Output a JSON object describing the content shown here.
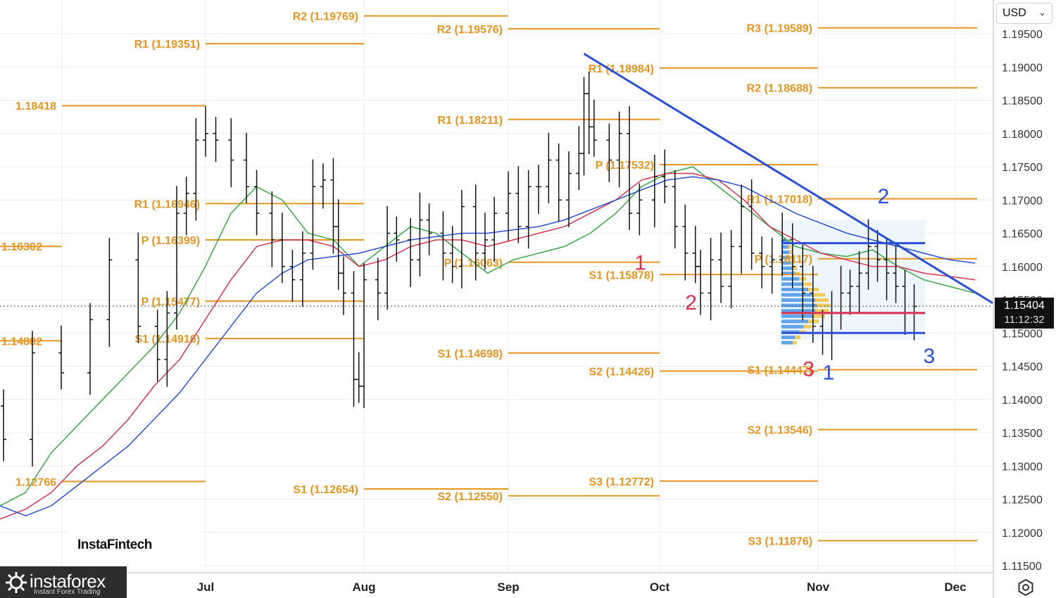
{
  "currency": "USD",
  "current_price": "1.15404",
  "countdown": "11:12:32",
  "watermark": "InstaFintech",
  "brand": {
    "name": "instaforex",
    "tagline": "Instant Forex Trading"
  },
  "colors": {
    "pivot": "#e69520",
    "trendline": "#2a4fd6",
    "ma_fast": "#3aa84a",
    "ma_mid": "#d8324f",
    "ma_slow": "#2a4fd6",
    "wave_red": "#d8324f",
    "wave_blue": "#2a4fd6"
  },
  "chart_data": {
    "type": "ohlc",
    "symbol_quote": "USD",
    "y_ticks": [
      "1.19500",
      "1.19000",
      "1.18500",
      "1.18000",
      "1.17500",
      "1.17000",
      "1.16500",
      "1.16000",
      "1.15500",
      "1.15000",
      "1.14500",
      "1.14000",
      "1.13500",
      "1.13000",
      "1.12500",
      "1.12000",
      "1.11500"
    ],
    "x_ticks": [
      "Jul",
      "Aug",
      "Sep",
      "Oct",
      "Nov",
      "Dec"
    ],
    "close_path": [
      [
        "Jun 01",
        1.1245
      ],
      [
        "Jun 04",
        1.133
      ],
      [
        "Jun 07",
        1.139
      ],
      [
        "Jun 10",
        1.134
      ],
      [
        "Jun 13",
        1.147
      ],
      [
        "Jun 16",
        1.144
      ],
      [
        "Jun 19",
        1.152
      ],
      [
        "Jun 21",
        1.161
      ],
      [
        "Jun 24",
        1.151
      ],
      [
        "Jun 26",
        1.146
      ],
      [
        "Jun 27",
        1.153
      ],
      [
        "Jun 28",
        1.168
      ],
      [
        "Jun 29",
        1.171
      ],
      [
        "Jun 30",
        1.179
      ],
      [
        "Jul 01",
        1.18
      ],
      [
        "Jul 03",
        1.179
      ],
      [
        "Jul 06",
        1.176
      ],
      [
        "Jul 09",
        1.172
      ],
      [
        "Jul 11",
        1.168
      ],
      [
        "Jul 14",
        1.164
      ],
      [
        "Jul 16",
        1.16
      ],
      [
        "Jul 18",
        1.158
      ],
      [
        "Jul 20",
        1.162
      ],
      [
        "Jul 22",
        1.172
      ],
      [
        "Jul 24",
        1.173
      ],
      [
        "Jul 26",
        1.166
      ],
      [
        "Jul 27",
        1.159
      ],
      [
        "Jul 28",
        1.156
      ],
      [
        "Jul 30",
        1.143
      ],
      [
        "Jul 31",
        1.142
      ],
      [
        "Aug 01",
        1.158
      ],
      [
        "Aug 04",
        1.156
      ],
      [
        "Aug 06",
        1.165
      ],
      [
        "Aug 08",
        1.164
      ],
      [
        "Aug 11",
        1.161
      ],
      [
        "Aug 13",
        1.167
      ],
      [
        "Aug 15",
        1.165
      ],
      [
        "Aug 18",
        1.162
      ],
      [
        "Aug 20",
        1.16
      ],
      [
        "Aug 22",
        1.169
      ],
      [
        "Aug 25",
        1.162
      ],
      [
        "Aug 27",
        1.164
      ],
      [
        "Aug 29",
        1.168
      ],
      [
        "Sep 01",
        1.171
      ],
      [
        "Sep 03",
        1.166
      ],
      [
        "Sep 05",
        1.172
      ],
      [
        "Sep 07",
        1.172
      ],
      [
        "Sep 09",
        1.176
      ],
      [
        "Sep 11",
        1.17
      ],
      [
        "Sep 13",
        1.174
      ],
      [
        "Sep 15",
        1.177
      ],
      [
        "Sep 16",
        1.186
      ],
      [
        "Sep 17",
        1.181
      ],
      [
        "Sep 18",
        1.179
      ],
      [
        "Sep 21",
        1.176
      ],
      [
        "Sep 23",
        1.18
      ],
      [
        "Sep 25",
        1.168
      ],
      [
        "Sep 27",
        1.17
      ],
      [
        "Sep 30",
        1.1735
      ],
      [
        "Oct 02",
        1.172
      ],
      [
        "Oct 04",
        1.166
      ],
      [
        "Oct 06",
        1.162
      ],
      [
        "Oct 08",
        1.16
      ],
      [
        "Oct 09",
        1.156
      ],
      [
        "Oct 11",
        1.161
      ],
      [
        "Oct 13",
        1.157
      ],
      [
        "Oct 15",
        1.163
      ],
      [
        "Oct 17",
        1.169
      ],
      [
        "Oct 19",
        1.162
      ],
      [
        "Oct 21",
        1.16
      ],
      [
        "Oct 23",
        1.161
      ],
      [
        "Oct 25",
        1.164
      ],
      [
        "Oct 27",
        1.16
      ],
      [
        "Oct 29",
        1.156
      ],
      [
        "Oct 31",
        1.151
      ],
      [
        "Nov 02",
        1.15
      ],
      [
        "Nov 04",
        1.153
      ],
      [
        "Nov 06",
        1.156
      ],
      [
        "Nov 08",
        1.157
      ],
      [
        "Nov 10",
        1.159
      ],
      [
        "Nov 12",
        1.163
      ],
      [
        "Nov 14",
        1.161
      ],
      [
        "Nov 16",
        1.159
      ],
      [
        "Nov 18",
        1.157
      ],
      [
        "Nov 20",
        1.153
      ],
      [
        "Nov 22",
        1.154
      ]
    ],
    "moving_averages": [
      {
        "color": "green",
        "values": [
          1.124,
          1.126,
          1.132,
          1.136,
          1.14,
          1.144,
          1.148,
          1.153,
          1.16,
          1.168,
          1.172,
          1.17,
          1.165,
          1.164,
          1.16,
          1.163,
          1.166,
          1.165,
          1.162,
          1.159,
          1.161,
          1.162,
          1.163,
          1.165,
          1.168,
          1.172,
          1.174,
          1.175,
          1.172,
          1.169,
          1.166,
          1.163,
          1.162,
          1.1615,
          1.1625,
          1.16,
          1.158,
          1.157,
          1.156
        ]
      },
      {
        "color": "red",
        "values": [
          1.122,
          1.1235,
          1.126,
          1.13,
          1.133,
          1.137,
          1.142,
          1.146,
          1.152,
          1.158,
          1.163,
          1.164,
          1.164,
          1.163,
          1.16,
          1.161,
          1.163,
          1.164,
          1.164,
          1.163,
          1.164,
          1.165,
          1.166,
          1.168,
          1.17,
          1.173,
          1.174,
          1.174,
          1.173,
          1.17,
          1.166,
          1.164,
          1.162,
          1.161,
          1.16,
          1.16,
          1.159,
          1.1585,
          1.158
        ]
      },
      {
        "color": "blue",
        "values": [
          1.124,
          1.1225,
          1.124,
          1.127,
          1.13,
          1.133,
          1.137,
          1.141,
          1.146,
          1.151,
          1.156,
          1.159,
          1.161,
          1.1615,
          1.162,
          1.163,
          1.164,
          1.1645,
          1.165,
          1.165,
          1.1655,
          1.166,
          1.167,
          1.1685,
          1.17,
          1.1715,
          1.173,
          1.1735,
          1.173,
          1.172,
          1.17,
          1.168,
          1.1665,
          1.165,
          1.164,
          1.163,
          1.162,
          1.161,
          1.1605
        ]
      }
    ],
    "pivot_levels": [
      {
        "label": "1.18418",
        "value": 1.18418,
        "period": "Jun"
      },
      {
        "label": "1.16302",
        "value": 1.16302,
        "period": "Jun"
      },
      {
        "label": "1.14882",
        "value": 1.14882,
        "period": "Jun"
      },
      {
        "label": "1.12766",
        "value": 1.12766,
        "period": "Jun"
      },
      {
        "label": "R2 (1.19769)",
        "value": 1.19769,
        "period": "Jul"
      },
      {
        "label": "R1 (1.19351)",
        "value": 1.19351,
        "period": "Jul"
      },
      {
        "label": "R1 (1.16946)",
        "value": 1.16946,
        "period": "Jul"
      },
      {
        "label": "P (1.16399)",
        "value": 1.16399,
        "period": "Jul"
      },
      {
        "label": "P (1.15477)",
        "value": 1.15477,
        "period": "Jul"
      },
      {
        "label": "S1 (1.14916)",
        "value": 1.14916,
        "period": "Jul"
      },
      {
        "label": "S1 (1.12654)",
        "value": 1.12654,
        "period": "Jul"
      },
      {
        "label": "R2 (1.19576)",
        "value": 1.19576,
        "period": "Aug"
      },
      {
        "label": "R1 (1.18211)",
        "value": 1.18211,
        "period": "Aug"
      },
      {
        "label": "P (1.16063)",
        "value": 1.16063,
        "period": "Aug"
      },
      {
        "label": "S1 (1.14698)",
        "value": 1.14698,
        "period": "Aug"
      },
      {
        "label": "S2 (1.12550)",
        "value": 1.1255,
        "period": "Aug"
      },
      {
        "label": "R1 (1.18984)",
        "value": 1.18984,
        "period": "Sep"
      },
      {
        "label": "P (1.17532)",
        "value": 1.17532,
        "period": "Sep"
      },
      {
        "label": "S1 (1.15878)",
        "value": 1.15878,
        "period": "Sep"
      },
      {
        "label": "S2 (1.14426)",
        "value": 1.14426,
        "period": "Sep"
      },
      {
        "label": "S3 (1.12772)",
        "value": 1.12772,
        "period": "Sep"
      },
      {
        "label": "R3 (1.19589)",
        "value": 1.19589,
        "period": "Oct"
      },
      {
        "label": "R2 (1.18688)",
        "value": 1.18688,
        "period": "Oct"
      },
      {
        "label": "R1 (1.17018)",
        "value": 1.17018,
        "period": "Oct"
      },
      {
        "label": "P (1.16117)",
        "value": 1.16117,
        "period": "Oct"
      },
      {
        "label": "S1 (1.14447)",
        "value": 1.14447,
        "period": "Oct"
      },
      {
        "label": "S2 (1.13546)",
        "value": 1.13546,
        "period": "Oct"
      },
      {
        "label": "S3 (1.11876)",
        "value": 1.11876,
        "period": "Oct"
      }
    ],
    "trendline": {
      "from": [
        "Sep 16",
        1.192
      ],
      "to": [
        "Dec 03",
        1.1545
      ]
    },
    "channel": {
      "upper": 1.1635,
      "lower": 1.15,
      "mid": 1.153
    },
    "wave_labels": [
      {
        "text": "1",
        "color": "red",
        "at": [
          "Sep 26",
          1.1595
        ]
      },
      {
        "text": "2",
        "color": "red",
        "at": [
          "Oct 06",
          1.1535
        ]
      },
      {
        "text": "3",
        "color": "red",
        "at": [
          "Oct 29",
          1.1435
        ]
      },
      {
        "text": "1",
        "color": "blue",
        "at": [
          "Nov 02",
          1.143
        ]
      },
      {
        "text": "2",
        "color": "blue",
        "at": [
          "Nov 14",
          1.1695
        ]
      },
      {
        "text": "3",
        "color": "blue",
        "at": [
          "Nov 24",
          1.1455
        ]
      }
    ],
    "current_price": 1.15404,
    "grid": true
  }
}
